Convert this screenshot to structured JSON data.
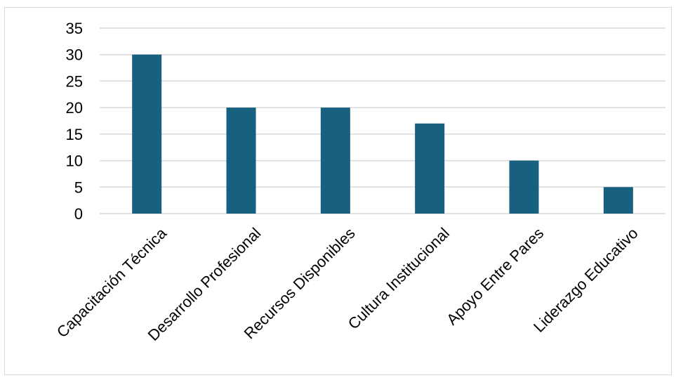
{
  "chart_data": {
    "type": "bar",
    "title": "",
    "xlabel": "",
    "ylabel": "",
    "categories": [
      "Capacitación Técnica",
      "Desarrollo Profesional",
      "Recursos Disponibles",
      "Cultura Institucional",
      "Apoyo Entre Pares",
      "Liderazgo Educativo"
    ],
    "values": [
      30,
      20,
      20,
      17,
      10,
      5
    ],
    "ylim": [
      0,
      35
    ],
    "yticks": [
      "0",
      "5",
      "10",
      "15",
      "20",
      "25",
      "30",
      "35"
    ],
    "grid": true,
    "legend": "none",
    "bar_color": "#17607f",
    "grid_color": "#d9d9d9"
  }
}
